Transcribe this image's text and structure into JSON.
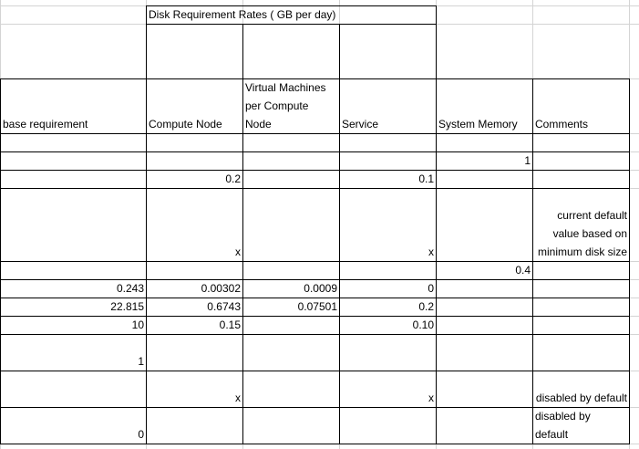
{
  "title": "Disk Requirement Rates ( GB per day)",
  "headers": {
    "base_requirement": "base requirement",
    "compute_node": "Compute Node",
    "vm_per_compute": "Virtual Machines per Compute Node",
    "service": "Service",
    "system_memory": "System Memory",
    "comments": "Comments"
  },
  "rows": {
    "r1": {
      "system_memory": "1"
    },
    "r2": {
      "compute_node": "0.2",
      "service": "0.1"
    },
    "r3": {
      "compute_node": "x",
      "service": "x",
      "comments": "current default value based on minimum disk size"
    },
    "r4": {
      "system_memory": "0.4"
    },
    "r5": {
      "base": "0.243",
      "compute_node": "0.00302",
      "vm_per_compute": "0.0009",
      "service": "0"
    },
    "r6": {
      "base": "22.815",
      "compute_node": "0.6743",
      "vm_per_compute": "0.07501",
      "service": "0.2"
    },
    "r7": {
      "base": "10",
      "compute_node": "0.15",
      "service": "0.10"
    },
    "r8": {
      "base": "1"
    },
    "r9": {
      "compute_node": "x",
      "service": "x",
      "comments": "disabled by default"
    },
    "r10": {
      "base": "0",
      "comments": "disabled by default"
    }
  }
}
